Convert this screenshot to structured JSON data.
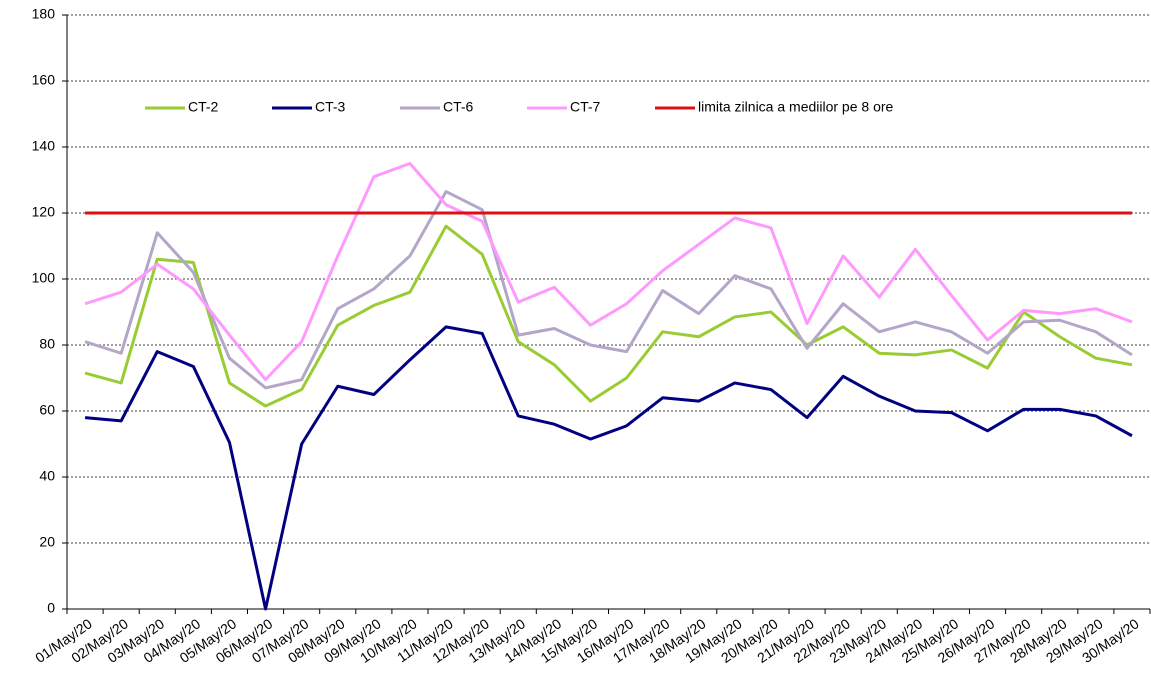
{
  "chart_data": {
    "type": "line",
    "categories": [
      "01/May/20",
      "02/May/20",
      "03/May/20",
      "04/May/20",
      "05/May/20",
      "06/May/20",
      "07/May/20",
      "08/May/20",
      "09/May/20",
      "10/May/20",
      "11/May/20",
      "12/May/20",
      "13/May/20",
      "14/May/20",
      "15/May/20",
      "16/May/20",
      "17/May/20",
      "18/May/20",
      "19/May/20",
      "20/May/20",
      "21/May/20",
      "22/May/20",
      "23/May/20",
      "24/May/20",
      "25/May/20",
      "26/May/20",
      "27/May/20",
      "28/May/20",
      "29/May/20",
      "30/May/20"
    ],
    "series": [
      {
        "name": "CT-2",
        "color": "#99cc33",
        "values": [
          71.5,
          68.5,
          106,
          105,
          68.5,
          61.5,
          66.5,
          86,
          92,
          96,
          116,
          107.5,
          81,
          74,
          63,
          70,
          84,
          82.5,
          88.5,
          90,
          80,
          85.5,
          77.5,
          77,
          78.5,
          73,
          90,
          82.5,
          76,
          74
        ]
      },
      {
        "name": "CT-3",
        "color": "#000080",
        "values": [
          58,
          57,
          78,
          73.5,
          50.5,
          0,
          50,
          67.5,
          65,
          75.5,
          85.5,
          83.5,
          58.5,
          56,
          51.5,
          55.5,
          64,
          63,
          68.5,
          66.5,
          58,
          70.5,
          64.5,
          60,
          59.5,
          54,
          60.5,
          60.5,
          58.5,
          52.5
        ]
      },
      {
        "name": "CT-6",
        "color": "#b3a6c9",
        "values": [
          81,
          77.5,
          114,
          102,
          76,
          67,
          69.5,
          91,
          97,
          107,
          126.5,
          121,
          83,
          85,
          80,
          78,
          96.5,
          89.5,
          101,
          97,
          79,
          92.5,
          84,
          87,
          84,
          77.5,
          87,
          87.5,
          84,
          77
        ]
      },
      {
        "name": "CT-7",
        "color": "#ff99ff",
        "values": [
          92.5,
          96,
          104.5,
          97,
          83,
          69.5,
          81,
          107,
          131,
          135,
          122.5,
          117.5,
          93,
          97.5,
          86,
          92.5,
          102.5,
          110.5,
          118.5,
          115.5,
          86.5,
          107,
          94.5,
          109,
          95,
          81.5,
          90.5,
          89.5,
          91,
          87
        ]
      },
      {
        "name": "limita zilnica a mediilor pe 8 ore",
        "color": "#dd1111",
        "values": [
          120,
          120,
          120,
          120,
          120,
          120,
          120,
          120,
          120,
          120,
          120,
          120,
          120,
          120,
          120,
          120,
          120,
          120,
          120,
          120,
          120,
          120,
          120,
          120,
          120,
          120,
          120,
          120,
          120,
          120
        ]
      }
    ],
    "ylim": [
      0,
      180
    ],
    "yticks": [
      0,
      20,
      40,
      60,
      80,
      100,
      120,
      140,
      160,
      180
    ],
    "grid": true,
    "legend": "top"
  }
}
